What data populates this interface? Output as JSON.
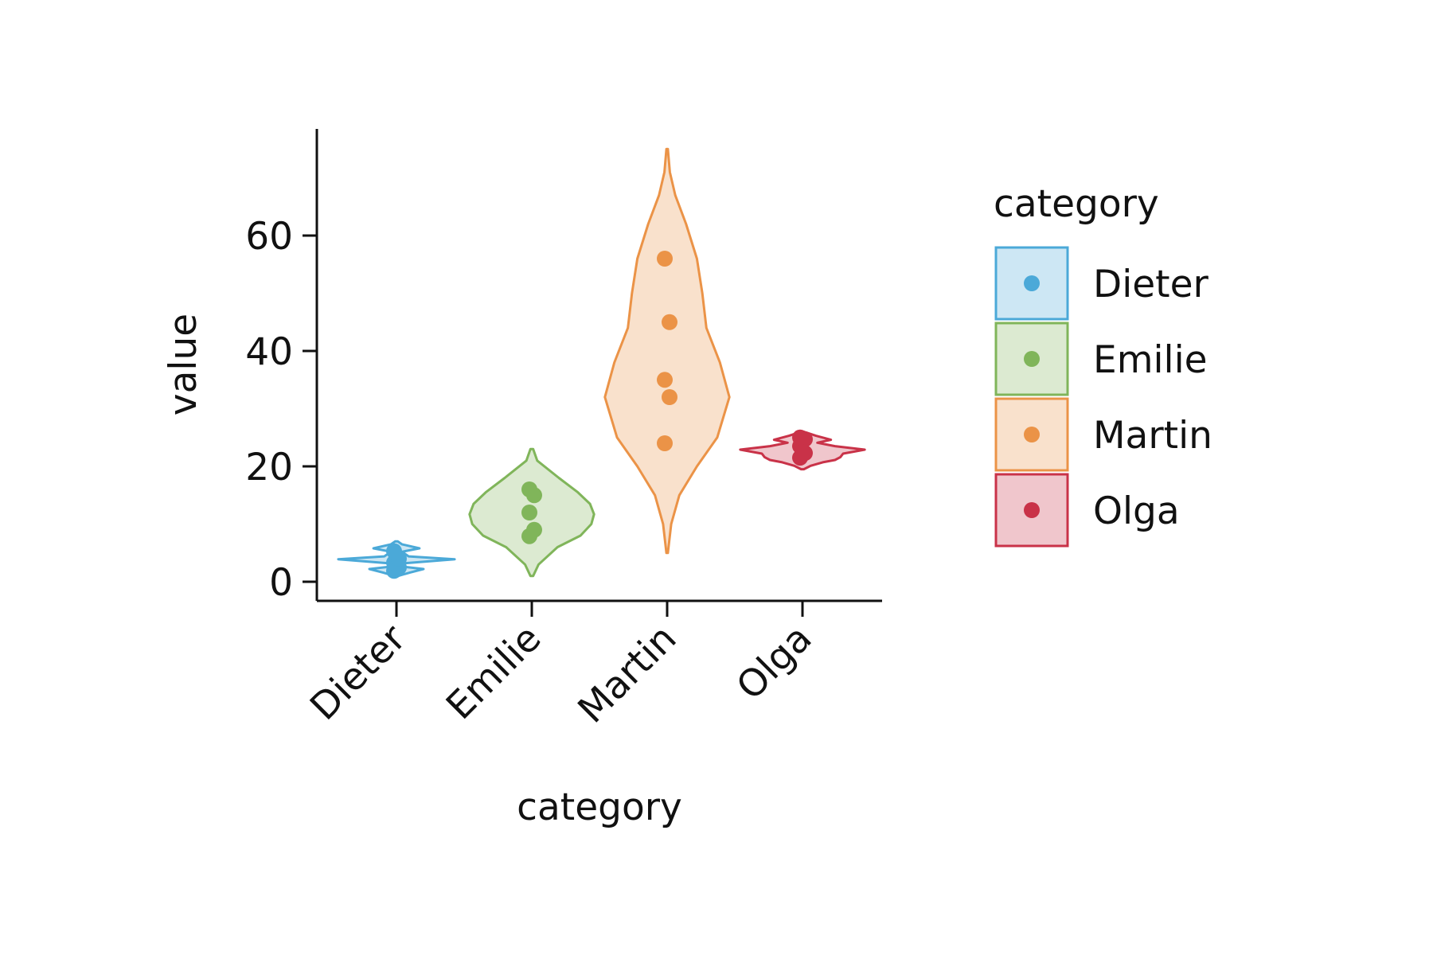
{
  "chart_data": {
    "type": "violin",
    "xlabel": "category",
    "ylabel": "value",
    "ylim": [
      -3,
      78
    ],
    "yticks": [
      0,
      20,
      40,
      60
    ],
    "categories": [
      "Dieter",
      "Emilie",
      "Martin",
      "Olga"
    ],
    "colors": [
      "#4ba9d8",
      "#80b55a",
      "#eb9347",
      "#c93248"
    ],
    "points": [
      [
        1.9,
        2.5,
        3.3,
        4.0,
        5.3
      ],
      [
        7.9,
        9.0,
        12.0,
        15.0,
        16.0
      ],
      [
        24.0,
        32.0,
        35.0,
        45.0,
        56.0
      ],
      [
        21.5,
        22.3,
        23.5,
        24.7,
        25.0
      ]
    ],
    "violins": [
      {
        "ymin": 1.0,
        "ymax": 7.0,
        "profile": [
          [
            1.0,
            0.01
          ],
          [
            1.6,
            0.1
          ],
          [
            2.2,
            0.2
          ],
          [
            2.6,
            0.05
          ],
          [
            3.2,
            0.06
          ],
          [
            3.9,
            0.43
          ],
          [
            4.4,
            0.09
          ],
          [
            5.2,
            0.04
          ],
          [
            5.8,
            0.17
          ],
          [
            6.5,
            0.04
          ],
          [
            7.0,
            0.01
          ]
        ]
      },
      {
        "ymin": 1.0,
        "ymax": 23.0,
        "profile": [
          [
            1.0,
            0.01
          ],
          [
            3.0,
            0.05
          ],
          [
            6.0,
            0.19
          ],
          [
            8.0,
            0.36
          ],
          [
            10.0,
            0.44
          ],
          [
            11.7,
            0.46
          ],
          [
            13.5,
            0.43
          ],
          [
            15.5,
            0.34
          ],
          [
            18.0,
            0.2
          ],
          [
            21.0,
            0.04
          ],
          [
            23.0,
            0.01
          ]
        ]
      },
      {
        "ymin": 5.0,
        "ymax": 75.0,
        "profile": [
          [
            5.0,
            0.005
          ],
          [
            10.0,
            0.03
          ],
          [
            15.0,
            0.09
          ],
          [
            20.0,
            0.22
          ],
          [
            25.0,
            0.37
          ],
          [
            32.0,
            0.46
          ],
          [
            38.0,
            0.39
          ],
          [
            44.0,
            0.29
          ],
          [
            50.0,
            0.26
          ],
          [
            56.0,
            0.22
          ],
          [
            62.0,
            0.14
          ],
          [
            67.0,
            0.06
          ],
          [
            71.0,
            0.02
          ],
          [
            75.0,
            0.005
          ]
        ]
      },
      {
        "ymin": 19.5,
        "ymax": 26.0,
        "profile": [
          [
            19.5,
            0.01
          ],
          [
            20.1,
            0.06
          ],
          [
            20.7,
            0.15
          ],
          [
            21.1,
            0.24
          ],
          [
            21.6,
            0.28
          ],
          [
            22.2,
            0.3
          ],
          [
            22.9,
            0.46
          ],
          [
            23.5,
            0.24
          ],
          [
            24.1,
            0.11
          ],
          [
            24.6,
            0.21
          ],
          [
            25.3,
            0.1
          ],
          [
            26.0,
            0.01
          ]
        ]
      }
    ],
    "legend": {
      "title": "category",
      "labels": [
        "Dieter",
        "Emilie",
        "Martin",
        "Olga"
      ],
      "placement": "right"
    }
  }
}
